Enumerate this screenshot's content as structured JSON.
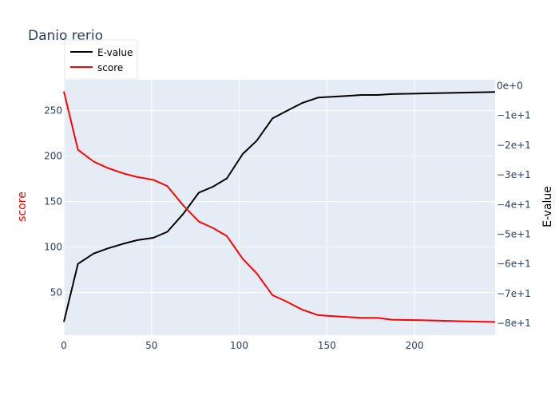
{
  "chart_data": {
    "type": "line",
    "title": "Danio rerio",
    "xlabel": "",
    "ylabel": "score",
    "y2label": "E-value",
    "xlim": [
      0,
      246
    ],
    "ylim": [
      3,
      284
    ],
    "y2lim": [
      -84,
      2
    ],
    "x_ticks": [
      0,
      50,
      100,
      150,
      200
    ],
    "x_tick_labels": [
      "0",
      "50",
      "100",
      "150",
      "200"
    ],
    "y_ticks": [
      50,
      100,
      150,
      200,
      250
    ],
    "y_tick_labels": [
      "50",
      "100",
      "150",
      "200",
      "250"
    ],
    "y2_ticks": [
      0,
      -10,
      -20,
      -30,
      -40,
      -50,
      -60,
      -70,
      -80
    ],
    "y2_tick_labels": [
      "0e+0",
      "−1e+1",
      "−2e+1",
      "−3e+1",
      "−4e+1",
      "−5e+1",
      "−6e+1",
      "−7e+1",
      "−8e+1"
    ],
    "legend_position": "top-left",
    "grid": true,
    "colors": {
      "plot_bg": "#e5ecf6",
      "grid": "#ffffff",
      "evalue": "#000000",
      "score": "#ff0000",
      "title": "#2a3f5f"
    },
    "series": [
      {
        "name": "E-value",
        "axis": "y2",
        "x": [
          0,
          8,
          17,
          25,
          34,
          42,
          51,
          59,
          68,
          77,
          85,
          93,
          102,
          110,
          119,
          127,
          136,
          145,
          153,
          162,
          170,
          179,
          187,
          196,
          204,
          213,
          221,
          230,
          238,
          246
        ],
        "y": [
          -79.5,
          -60,
          -56.5,
          -54.8,
          -53.2,
          -52,
          -51.2,
          -49.2,
          -43.2,
          -36,
          -34,
          -31.2,
          -23,
          -18.5,
          -11,
          -8.5,
          -5.8,
          -4,
          -3.7,
          -3.4,
          -3.1,
          -3.1,
          -2.8,
          -2.7,
          -2.6,
          -2.5,
          -2.4,
          -2.3,
          -2.2,
          -2.1
        ]
      },
      {
        "name": "score",
        "axis": "y",
        "x": [
          0,
          8,
          17,
          25,
          34,
          42,
          51,
          59,
          68,
          77,
          85,
          93,
          102,
          110,
          119,
          127,
          136,
          145,
          153,
          162,
          170,
          179,
          187,
          196,
          204,
          213,
          221,
          230,
          238,
          246
        ],
        "y": [
          271,
          207,
          194,
          187,
          181,
          177,
          174,
          167,
          146,
          128,
          121,
          112,
          87,
          71,
          47,
          40,
          31,
          25,
          24,
          23,
          22,
          22,
          20,
          19.7,
          19.4,
          19,
          18.6,
          18.2,
          17.8,
          17.5
        ]
      }
    ]
  }
}
